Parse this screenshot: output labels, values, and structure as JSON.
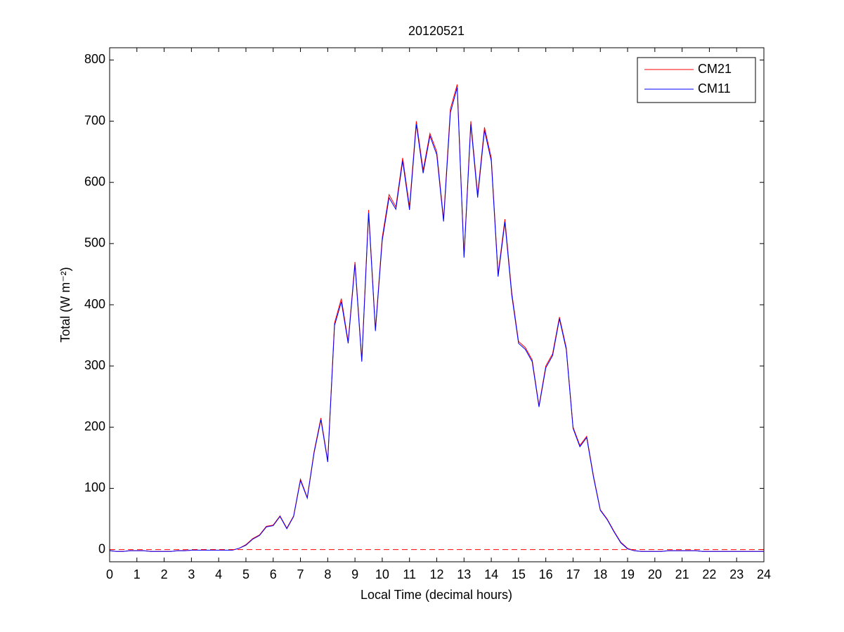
{
  "chart_data": {
    "type": "line",
    "title": "20120521",
    "xlabel": "Local Time (decimal hours)",
    "ylabel": "Total (W m⁻²)",
    "x": [
      0,
      0.25,
      0.5,
      0.75,
      1,
      1.25,
      1.5,
      1.75,
      2,
      2.25,
      2.5,
      2.75,
      3,
      3.25,
      3.5,
      3.75,
      4,
      4.25,
      4.5,
      4.75,
      5,
      5.25,
      5.5,
      5.75,
      6,
      6.25,
      6.5,
      6.75,
      7,
      7.25,
      7.5,
      7.75,
      8,
      8.25,
      8.5,
      8.75,
      9,
      9.25,
      9.5,
      9.75,
      10,
      10.25,
      10.5,
      10.75,
      11,
      11.25,
      11.5,
      11.75,
      12,
      12.25,
      12.5,
      12.75,
      13,
      13.25,
      13.5,
      13.75,
      14,
      14.25,
      14.5,
      14.75,
      15,
      15.25,
      15.5,
      15.75,
      16,
      16.25,
      16.5,
      16.75,
      17,
      17.25,
      17.5,
      17.75,
      18,
      18.25,
      18.5,
      18.75,
      19,
      19.25,
      19.5,
      19.75,
      20,
      20.25,
      20.5,
      20.75,
      21,
      21.25,
      21.5,
      21.75,
      22,
      22.25,
      22.5,
      22.75,
      23,
      23.25,
      23.5,
      23.75,
      24
    ],
    "series": [
      {
        "name": "CM21",
        "color": "#ff0000",
        "values": [
          -2,
          -3,
          -3,
          -2,
          -2,
          -2,
          -3,
          -3,
          -3,
          -3,
          -2,
          -2,
          -1,
          -1,
          -1,
          -1,
          -1,
          -1,
          -1,
          2,
          8,
          18,
          24,
          38,
          40,
          55,
          35,
          55,
          115,
          85,
          160,
          215,
          145,
          370,
          410,
          340,
          470,
          310,
          555,
          360,
          510,
          580,
          560,
          640,
          560,
          700,
          620,
          680,
          650,
          540,
          720,
          760,
          480,
          700,
          580,
          690,
          640,
          450,
          540,
          420,
          340,
          330,
          310,
          235,
          300,
          320,
          380,
          330,
          200,
          170,
          185,
          120,
          65,
          50,
          30,
          12,
          2,
          -2,
          -3,
          -3,
          -3,
          -3,
          -2,
          -2,
          -2,
          -2,
          -2,
          -3,
          -3,
          -3,
          -3,
          -3,
          -3,
          -3,
          -3,
          -3,
          -3
        ]
      },
      {
        "name": "CM11",
        "color": "#0000ff",
        "values": [
          -2,
          -3,
          -3,
          -2,
          -2,
          -2,
          -3,
          -3,
          -3,
          -3,
          -2,
          -2,
          -1,
          -1,
          -1,
          -1,
          -1,
          -1,
          -1,
          2,
          7,
          17,
          23,
          37,
          39,
          54,
          34,
          54,
          113,
          84,
          158,
          212,
          143,
          366,
          405,
          337,
          466,
          307,
          550,
          357,
          505,
          575,
          556,
          635,
          555,
          695,
          615,
          676,
          645,
          536,
          714,
          755,
          477,
          695,
          575,
          685,
          635,
          446,
          535,
          416,
          337,
          327,
          307,
          233,
          297,
          317,
          377,
          327,
          198,
          168,
          183,
          118,
          64,
          49,
          29,
          11,
          1,
          -2,
          -3,
          -3,
          -3,
          -3,
          -2,
          -2,
          -2,
          -2,
          -2,
          -3,
          -3,
          -3,
          -3,
          -3,
          -3,
          -3,
          -3,
          -3,
          -3
        ]
      }
    ],
    "reference_line": {
      "value": 0,
      "color": "#ff0000",
      "style": "dashed"
    },
    "xlim": [
      0,
      24
    ],
    "xticks": [
      0,
      1,
      2,
      3,
      4,
      5,
      6,
      7,
      8,
      9,
      10,
      11,
      12,
      13,
      14,
      15,
      16,
      17,
      18,
      19,
      20,
      21,
      22,
      23,
      24
    ],
    "ylim": [
      -20,
      820
    ],
    "yticks": [
      0,
      100,
      200,
      300,
      400,
      500,
      600,
      700,
      800
    ],
    "legend": "top-right",
    "grid": false
  }
}
